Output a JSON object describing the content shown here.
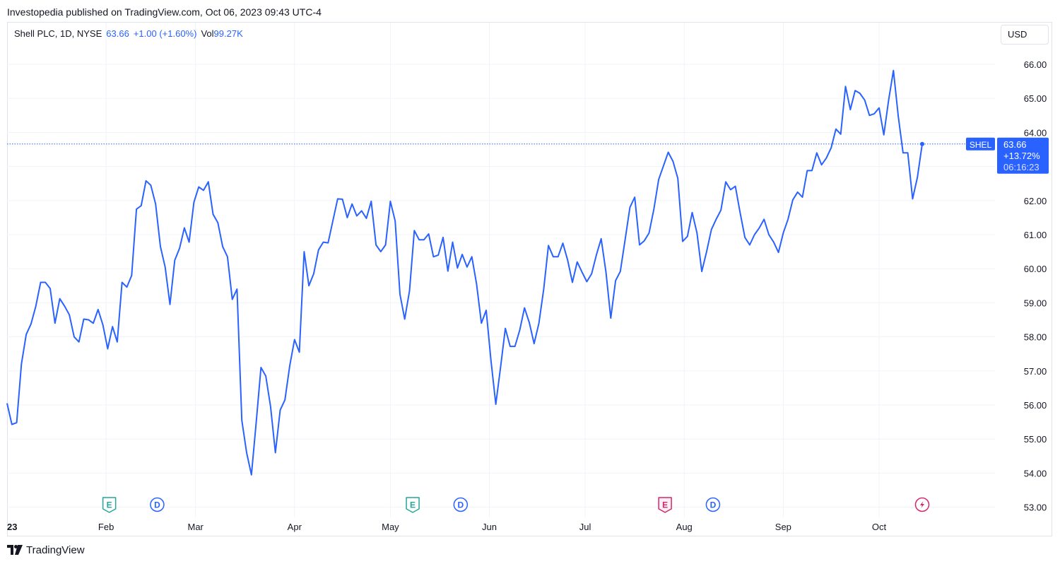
{
  "header": {
    "published_line": "Investopedia published on TradingView.com, Oct 06, 2023 09:43 UTC-4"
  },
  "legend": {
    "symbol_info": "Shell PLC, 1D, NYSE",
    "last_price": "63.66",
    "change": "+1.00 (+1.60%)",
    "volume_label": "Vol",
    "volume_value": "99.27K"
  },
  "currency": "USD",
  "price_label": {
    "ticker": "SHEL",
    "price": "63.66",
    "change_pct": "+13.72%",
    "countdown": "06:16:23"
  },
  "footer": {
    "brand": "TradingView"
  },
  "colors": {
    "line": "#2962ff",
    "grid": "#f0f3fa",
    "earnings_past": "#26a69a",
    "earnings_next": "#d1296b",
    "dividend": "#2962ff",
    "split": "#d1296b"
  },
  "chart_data": {
    "type": "line",
    "title": "Shell PLC, 1D, NYSE",
    "ylim": [
      52.5,
      66.5
    ],
    "y_ticks": [
      "66.00",
      "65.00",
      "64.00",
      "63.00",
      "62.00",
      "61.00",
      "60.00",
      "59.00",
      "58.00",
      "57.00",
      "56.00",
      "55.00",
      "54.00",
      "53.00"
    ],
    "x_ticks": [
      {
        "label": "23",
        "day": 0,
        "bold": true
      },
      {
        "label": "Feb",
        "day": 31,
        "bold": false
      },
      {
        "label": "Mar",
        "day": 59,
        "bold": false
      },
      {
        "label": "Apr",
        "day": 90,
        "bold": false
      },
      {
        "label": "May",
        "day": 120,
        "bold": false
      },
      {
        "label": "Jun",
        "day": 151,
        "bold": false
      },
      {
        "label": "Jul",
        "day": 181,
        "bold": false
      },
      {
        "label": "Aug",
        "day": 212,
        "bold": false
      },
      {
        "label": "Sep",
        "day": 243,
        "bold": false
      },
      {
        "label": "Oct",
        "day": 273,
        "bold": false
      }
    ],
    "series": [
      {
        "values": [
          [
            0,
            56.05
          ],
          [
            1.5,
            55.43
          ],
          [
            3,
            55.48
          ],
          [
            4.5,
            57.2
          ],
          [
            6,
            58.07
          ],
          [
            7.5,
            58.38
          ],
          [
            9,
            58.9
          ],
          [
            10.5,
            59.6
          ],
          [
            12,
            59.6
          ],
          [
            13.5,
            59.42
          ],
          [
            15,
            58.4
          ],
          [
            16.5,
            59.12
          ],
          [
            18,
            58.9
          ],
          [
            19.5,
            58.65
          ],
          [
            21,
            58.0
          ],
          [
            22.5,
            57.85
          ],
          [
            24,
            58.52
          ],
          [
            25.5,
            58.5
          ],
          [
            27,
            58.4
          ],
          [
            28.5,
            58.8
          ],
          [
            30,
            58.35
          ],
          [
            31.5,
            57.65
          ],
          [
            33,
            58.3
          ],
          [
            34.5,
            57.85
          ],
          [
            36,
            59.6
          ],
          [
            37.5,
            59.46
          ],
          [
            39,
            59.8
          ],
          [
            40.5,
            61.75
          ],
          [
            42,
            61.85
          ],
          [
            43.5,
            62.58
          ],
          [
            45,
            62.45
          ],
          [
            46.5,
            61.9
          ],
          [
            48,
            60.65
          ],
          [
            49.5,
            60.05
          ],
          [
            51,
            58.95
          ],
          [
            52.5,
            60.25
          ],
          [
            54,
            60.6
          ],
          [
            55.5,
            61.2
          ],
          [
            57,
            60.78
          ],
          [
            58.5,
            61.95
          ],
          [
            60,
            62.4
          ],
          [
            61.5,
            62.3
          ],
          [
            63,
            62.55
          ],
          [
            64.5,
            61.6
          ],
          [
            66,
            61.35
          ],
          [
            67.5,
            60.65
          ],
          [
            69,
            60.35
          ],
          [
            70.5,
            59.1
          ],
          [
            72,
            59.4
          ],
          [
            73.5,
            55.55
          ],
          [
            75,
            54.6
          ],
          [
            76.5,
            53.95
          ],
          [
            78,
            55.5
          ],
          [
            79.5,
            57.1
          ],
          [
            81,
            56.85
          ],
          [
            82.5,
            55.95
          ],
          [
            84,
            54.6
          ],
          [
            85.5,
            55.85
          ],
          [
            87,
            56.15
          ],
          [
            88.5,
            57.15
          ],
          [
            90,
            57.92
          ],
          [
            91.5,
            57.55
          ],
          [
            93,
            60.5
          ],
          [
            94.5,
            59.5
          ],
          [
            96,
            59.85
          ],
          [
            97.5,
            60.55
          ],
          [
            99,
            60.78
          ],
          [
            100.5,
            60.76
          ],
          [
            102,
            61.4
          ],
          [
            103.5,
            62.05
          ],
          [
            105,
            62.04
          ],
          [
            106.5,
            61.5
          ],
          [
            108,
            61.9
          ],
          [
            109.5,
            61.55
          ],
          [
            111,
            61.7
          ],
          [
            112.5,
            61.48
          ],
          [
            114,
            61.98
          ],
          [
            115.5,
            60.7
          ],
          [
            117,
            60.5
          ],
          [
            118.5,
            60.7
          ],
          [
            120,
            61.98
          ],
          [
            121.5,
            61.4
          ],
          [
            123,
            59.25
          ],
          [
            124.5,
            58.52
          ],
          [
            126,
            59.35
          ],
          [
            127.5,
            61.12
          ],
          [
            129,
            60.85
          ],
          [
            130.5,
            60.85
          ],
          [
            132,
            61.02
          ],
          [
            133.5,
            60.35
          ],
          [
            135,
            60.4
          ],
          [
            136.5,
            60.92
          ],
          [
            138,
            59.93
          ],
          [
            139.5,
            60.78
          ],
          [
            141,
            60.02
          ],
          [
            142.5,
            60.42
          ],
          [
            144,
            60.05
          ],
          [
            145.5,
            60.35
          ],
          [
            147,
            59.55
          ],
          [
            148.5,
            58.4
          ],
          [
            150,
            58.78
          ],
          [
            151.5,
            57.3
          ],
          [
            153,
            56.02
          ],
          [
            154.5,
            57.1
          ],
          [
            156,
            58.25
          ],
          [
            157.5,
            57.72
          ],
          [
            159,
            57.72
          ],
          [
            160.5,
            58.2
          ],
          [
            162,
            58.85
          ],
          [
            163.5,
            58.42
          ],
          [
            165,
            57.8
          ],
          [
            166.5,
            58.4
          ],
          [
            168,
            59.4
          ],
          [
            169.5,
            60.68
          ],
          [
            171,
            60.35
          ],
          [
            172.5,
            60.35
          ],
          [
            174,
            60.75
          ],
          [
            175.5,
            60.25
          ],
          [
            177,
            59.6
          ],
          [
            178.5,
            60.2
          ],
          [
            180,
            59.9
          ],
          [
            181.5,
            59.62
          ],
          [
            183,
            59.85
          ],
          [
            184.5,
            60.4
          ],
          [
            186,
            60.88
          ],
          [
            187.5,
            59.9
          ],
          [
            189,
            58.55
          ],
          [
            190.5,
            59.65
          ],
          [
            192,
            59.92
          ],
          [
            193.5,
            60.85
          ],
          [
            195,
            61.8
          ],
          [
            196.5,
            62.1
          ],
          [
            198,
            60.7
          ],
          [
            199.5,
            60.82
          ],
          [
            201,
            61.05
          ],
          [
            202.5,
            61.75
          ],
          [
            204,
            62.62
          ],
          [
            205.5,
            63.02
          ],
          [
            207,
            63.42
          ],
          [
            208.5,
            63.15
          ],
          [
            210,
            62.65
          ],
          [
            211.5,
            60.8
          ],
          [
            213,
            60.95
          ],
          [
            214.5,
            61.65
          ],
          [
            216,
            61.05
          ],
          [
            217.5,
            59.92
          ],
          [
            219,
            60.5
          ],
          [
            220.5,
            61.15
          ],
          [
            222,
            61.45
          ],
          [
            223.5,
            61.72
          ],
          [
            225,
            62.55
          ],
          [
            226.5,
            62.32
          ],
          [
            228,
            62.42
          ],
          [
            229.5,
            61.65
          ],
          [
            231,
            60.92
          ],
          [
            232.5,
            60.7
          ],
          [
            234,
            61.0
          ],
          [
            235.5,
            61.2
          ],
          [
            237,
            61.45
          ],
          [
            238.5,
            61.0
          ],
          [
            240,
            60.78
          ],
          [
            241.5,
            60.48
          ],
          [
            243,
            61.05
          ],
          [
            244.5,
            61.45
          ],
          [
            246,
            62.02
          ],
          [
            247.5,
            62.25
          ],
          [
            249,
            62.1
          ],
          [
            250.5,
            62.88
          ],
          [
            252,
            62.88
          ],
          [
            253.5,
            63.4
          ],
          [
            255,
            63.05
          ],
          [
            256.5,
            63.25
          ],
          [
            258,
            63.55
          ],
          [
            259.5,
            64.1
          ],
          [
            261,
            63.95
          ],
          [
            262.5,
            65.35
          ],
          [
            264,
            64.67
          ],
          [
            265.5,
            65.23
          ],
          [
            267,
            65.15
          ],
          [
            268.5,
            64.95
          ],
          [
            270,
            64.5
          ],
          [
            271.5,
            64.55
          ],
          [
            273,
            64.72
          ],
          [
            274.5,
            63.93
          ],
          [
            276,
            64.95
          ],
          [
            277.5,
            65.82
          ],
          [
            279,
            64.48
          ],
          [
            280.5,
            63.4
          ],
          [
            282,
            63.4
          ],
          [
            283.5,
            62.05
          ],
          [
            285,
            62.68
          ],
          [
            286.5,
            63.66
          ]
        ]
      }
    ],
    "current_price": 63.66,
    "events": [
      {
        "type": "E",
        "kind": "earnings",
        "day": 32
      },
      {
        "type": "D",
        "kind": "dividend",
        "day": 47
      },
      {
        "type": "E",
        "kind": "earnings",
        "day": 127
      },
      {
        "type": "D",
        "kind": "dividend",
        "day": 142
      },
      {
        "type": "E",
        "kind": "earnings-next",
        "day": 206
      },
      {
        "type": "D",
        "kind": "dividend",
        "day": 221
      },
      {
        "type": "⚡",
        "kind": "split",
        "day": 286.5
      }
    ]
  }
}
